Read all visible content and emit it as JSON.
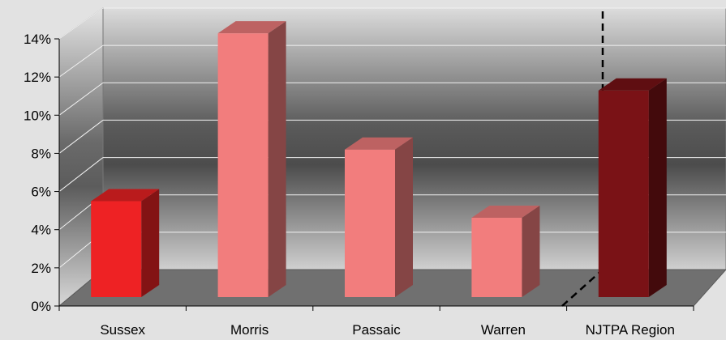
{
  "chart_data": {
    "type": "bar",
    "categories": [
      "Sussex",
      "Morris",
      "Passaic",
      "Warren",
      "NJTPA Region"
    ],
    "values": [
      5.2,
      14.3,
      8.0,
      4.3,
      11.2
    ],
    "y_unit": "%",
    "ylim": [
      0,
      14
    ],
    "yticks": [
      "0%",
      "2%",
      "4%",
      "6%",
      "8%",
      "10%",
      "12%",
      "14%"
    ],
    "grid": true,
    "legend": "none",
    "separator_before": "NJTPA Region",
    "colors": {
      "highlight": "#ee2224",
      "county": "#f27d7d",
      "region": "#7a1216"
    },
    "bar_colors": [
      "highlight",
      "county",
      "county",
      "county",
      "region"
    ]
  }
}
